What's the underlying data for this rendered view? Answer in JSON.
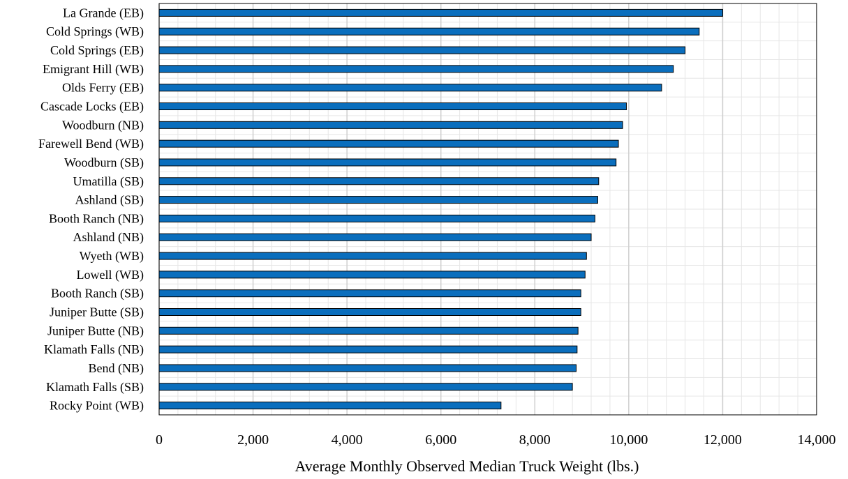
{
  "chart_data": {
    "type": "bar",
    "orientation": "horizontal",
    "title": "",
    "xlabel": "Average Monthly Observed Median Truck Weight (lbs.)",
    "ylabel": "",
    "xlim": [
      0,
      14000
    ],
    "x_major_step": 2000,
    "x_minor_step": 400,
    "grid": true,
    "legend": "none",
    "bar_color": "#0a6ebd",
    "bar_edge_color": "#000000",
    "x_ticks": [
      "0",
      "2,000",
      "4,000",
      "6,000",
      "8,000",
      "10,000",
      "12,000",
      "14,000"
    ],
    "categories": [
      "La Grande (EB)",
      "Cold Springs (WB)",
      "Cold Springs (EB)",
      "Emigrant Hill (WB)",
      "Olds Ferry (EB)",
      "Cascade Locks (EB)",
      "Woodburn (NB)",
      "Farewell Bend (WB)",
      "Woodburn (SB)",
      "Umatilla (SB)",
      "Ashland (SB)",
      "Booth Ranch (NB)",
      "Ashland (NB)",
      "Wyeth (WB)",
      "Lowell (WB)",
      "Booth Ranch (SB)",
      "Juniper Butte (SB)",
      "Juniper Butte (NB)",
      "Klamath Falls (NB)",
      "Bend (NB)",
      "Klamath Falls (SB)",
      "Rocky Point (WB)"
    ],
    "values": [
      12000,
      11500,
      11200,
      10950,
      10700,
      9950,
      9870,
      9780,
      9730,
      9360,
      9340,
      9280,
      9200,
      9100,
      9070,
      8980,
      8980,
      8920,
      8900,
      8880,
      8800,
      7280
    ]
  }
}
